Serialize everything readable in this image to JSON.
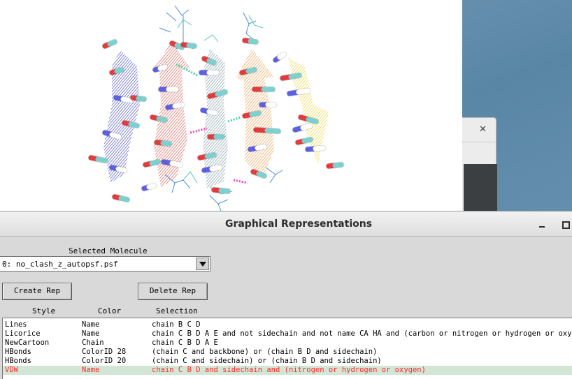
{
  "window": {
    "title": "Graphical Representations"
  },
  "selected_molecule": {
    "label": "Selected Molecule",
    "value": "0: no_clash_z_autopsf.psf"
  },
  "buttons": {
    "create_rep": "Create Rep",
    "delete_rep": "Delete Rep"
  },
  "columns": {
    "style": "Style",
    "color": "Color",
    "selection": "Selection"
  },
  "reps": [
    {
      "style": "Lines",
      "color": "Name",
      "selection": "chain B C D"
    },
    {
      "style": "Licorice",
      "color": "Name",
      "selection": "chain C B D A E and not sidechain and not name CA HA and (carbon or nitrogen or hydrogen or oxygen)"
    },
    {
      "style": "NewCartoon",
      "color": "Chain",
      "selection": "chain C B D A E"
    },
    {
      "style": "HBonds",
      "color": "ColorID 28",
      "selection": "(chain C and backbone) or (chain B D and sidechain)"
    },
    {
      "style": "HBonds",
      "color": "ColorID 20",
      "selection": "(chain C and sidechain) or (chain B D and sidechain)"
    },
    {
      "style": "VDW",
      "color": "Name",
      "selection": "chain C B D and sidechain and (nitrogen or hydrogen or oxygen)"
    }
  ],
  "selected_rep_index": 5,
  "colors": {
    "selected_row_bg": "#d3e6d5",
    "selected_row_text": "#ff2a2a",
    "chain_blue": "#6a70d8",
    "chain_red": "#e57c72",
    "chain_gray": "#9fb7c0",
    "chain_orange": "#f4b06e",
    "chain_yellow": "#f2e36a"
  },
  "icons": {
    "background_close": "close-icon",
    "minimize": "minimize-icon",
    "maximize": "maximize-icon",
    "dropdown": "chevron-down-icon"
  }
}
